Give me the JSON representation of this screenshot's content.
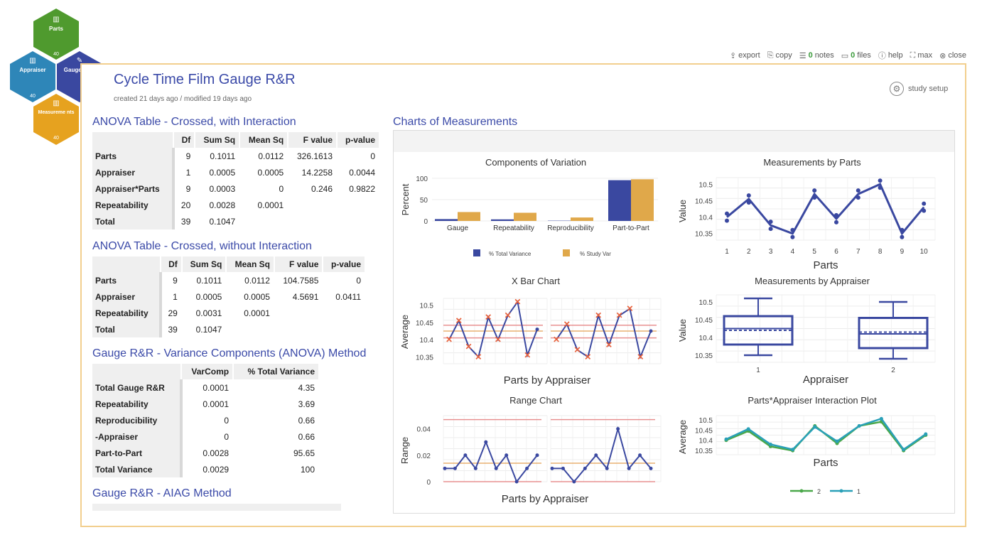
{
  "nav": {
    "parts": {
      "label": "Parts",
      "count": "40",
      "color": "#4f9a2e"
    },
    "appraiser": {
      "label": "Appraiser",
      "count": "40",
      "color": "#2e86b8"
    },
    "gauge": {
      "label": "Gauge R&R",
      "count": "",
      "color": "#3a48a0"
    },
    "measurements": {
      "label": "Measureme nts",
      "count": "40",
      "color": "#e6a21f"
    }
  },
  "toolbar": {
    "export": "export",
    "copy": "copy",
    "notes_count": "0",
    "notes": "notes",
    "files_count": "0",
    "files": "files",
    "help": "help",
    "max": "max",
    "close": "close"
  },
  "study": {
    "title": "Cycle Time Film Gauge R&R",
    "meta": "created 21 days ago / modified 19 days ago",
    "setup": "study setup"
  },
  "anova_interaction": {
    "title": "ANOVA Table - Crossed, with Interaction",
    "headers": [
      "Df",
      "Sum Sq",
      "Mean Sq",
      "F value",
      "p-value"
    ],
    "rows": [
      {
        "name": "Parts",
        "cells": [
          "9",
          "0.1011",
          "0.0112",
          "326.1613",
          "0"
        ]
      },
      {
        "name": "Appraiser",
        "cells": [
          "1",
          "0.0005",
          "0.0005",
          "14.2258",
          "0.0044"
        ]
      },
      {
        "name": "Appraiser*Parts",
        "cells": [
          "9",
          "0.0003",
          "0",
          "0.246",
          "0.9822"
        ]
      },
      {
        "name": "Repeatability",
        "cells": [
          "20",
          "0.0028",
          "0.0001",
          "",
          ""
        ]
      },
      {
        "name": "Total",
        "cells": [
          "39",
          "0.1047",
          "",
          "",
          ""
        ]
      }
    ]
  },
  "anova_no_interaction": {
    "title": "ANOVA Table - Crossed, without Interaction",
    "headers": [
      "Df",
      "Sum Sq",
      "Mean Sq",
      "F value",
      "p-value"
    ],
    "rows": [
      {
        "name": "Parts",
        "cells": [
          "9",
          "0.1011",
          "0.0112",
          "104.7585",
          "0"
        ]
      },
      {
        "name": "Appraiser",
        "cells": [
          "1",
          "0.0005",
          "0.0005",
          "4.5691",
          "0.0411"
        ]
      },
      {
        "name": "Repeatability",
        "cells": [
          "29",
          "0.0031",
          "0.0001",
          "",
          ""
        ]
      },
      {
        "name": "Total",
        "cells": [
          "39",
          "0.1047",
          "",
          "",
          ""
        ]
      }
    ]
  },
  "variance_components": {
    "title": "Gauge R&R - Variance Components (ANOVA) Method",
    "headers": [
      "VarComp",
      "% Total Variance"
    ],
    "rows": [
      {
        "name": "Total Gauge R&R",
        "cells": [
          "0.0001",
          "4.35"
        ]
      },
      {
        "name": "Repeatability",
        "cells": [
          "0.0001",
          "3.69"
        ]
      },
      {
        "name": "Reproducibility",
        "cells": [
          "0",
          "0.66"
        ]
      },
      {
        "name": "-Appraiser",
        "cells": [
          "0",
          "0.66"
        ]
      },
      {
        "name": "Part-to-Part",
        "cells": [
          "0.0028",
          "95.65"
        ]
      },
      {
        "name": "Total Variance",
        "cells": [
          "0.0029",
          "100"
        ]
      }
    ]
  },
  "aiag": {
    "title": "Gauge R&R - AIAG Method"
  },
  "charts_title": "Charts of Measurements",
  "colors": {
    "blue": "#3a48a0",
    "orange": "#e0a84a",
    "red_marker": "#e8603a",
    "limit_red": "#e89090",
    "limit_orange": "#e8b070",
    "teal": "#2aa0b8",
    "green": "#4aa84a"
  },
  "chart_data": [
    {
      "type": "bar",
      "title": "Components of Variation",
      "ylabel": "Percent",
      "ylim": [
        0,
        100
      ],
      "yticks": [
        "0",
        "50",
        "100"
      ],
      "categories": [
        "Gauge",
        "Repeatability",
        "Reproducibility",
        "Part-to-Part"
      ],
      "series": [
        {
          "name": "% Total Variance",
          "values": [
            4.35,
            3.69,
            0.66,
            95.65
          ]
        },
        {
          "name": "% Study Var",
          "values": [
            20.9,
            19.2,
            8.1,
            97.8
          ]
        }
      ]
    },
    {
      "type": "line",
      "title": "Measurements by Parts",
      "xlabel": "Parts",
      "ylabel": "Value",
      "x": [
        1,
        2,
        3,
        4,
        5,
        6,
        7,
        8,
        9,
        10
      ],
      "y": [
        10.4,
        10.455,
        10.375,
        10.35,
        10.47,
        10.395,
        10.47,
        10.5,
        10.35,
        10.43
      ],
      "ylim": [
        10.33,
        10.52
      ],
      "yticks": [
        "10.35",
        "10.4",
        "10.45",
        "10.5"
      ],
      "xticks": [
        "1",
        "2",
        "3",
        "4",
        "5",
        "6",
        "7",
        "8",
        "9",
        "10"
      ]
    },
    {
      "type": "line",
      "title": "X Bar Chart",
      "xlabel": "Parts by Appraiser",
      "ylabel": "Average",
      "series": [
        {
          "name": "1",
          "values": [
            10.4,
            10.455,
            10.38,
            10.35,
            10.465,
            10.4,
            10.47,
            10.51,
            10.355,
            10.43
          ]
        },
        {
          "name": "2",
          "values": [
            10.4,
            10.445,
            10.37,
            10.35,
            10.47,
            10.385,
            10.47,
            10.49,
            10.35,
            10.425
          ]
        }
      ],
      "ylim": [
        10.33,
        10.52
      ],
      "yticks": [
        "10.35",
        "10.4",
        "10.45",
        "10.5"
      ]
    },
    {
      "type": "scatter",
      "title": "Measurements by Appraiser",
      "xlabel": "Appraiser",
      "ylabel": "Value",
      "categories": [
        "1",
        "2"
      ],
      "yticks": [
        "10.35",
        "10.4",
        "10.45",
        "10.5"
      ],
      "boxes": [
        {
          "min": 10.35,
          "q1": 10.38,
          "median": 10.425,
          "mean": 10.42,
          "q3": 10.46,
          "max": 10.51
        },
        {
          "min": 10.34,
          "q1": 10.37,
          "median": 10.41,
          "mean": 10.415,
          "q3": 10.455,
          "max": 10.5
        }
      ]
    },
    {
      "type": "line",
      "title": "Range Chart",
      "xlabel": "Parts by Appraiser",
      "ylabel": "Range",
      "series": [
        {
          "name": "1",
          "values": [
            0.01,
            0.01,
            0.02,
            0.01,
            0.03,
            0.01,
            0.02,
            0.0,
            0.01,
            0.02
          ]
        },
        {
          "name": "2",
          "values": [
            0.01,
            0.01,
            0.0,
            0.01,
            0.02,
            0.01,
            0.04,
            0.01,
            0.02,
            0.01
          ]
        }
      ],
      "ylim": [
        0,
        0.05
      ],
      "yticks": [
        "0",
        "0.02",
        "0.04"
      ]
    },
    {
      "type": "line",
      "title": "Parts*Appraiser Interaction Plot",
      "xlabel": "Parts",
      "ylabel": "Average",
      "series": [
        {
          "name": "2",
          "values": [
            10.4,
            10.445,
            10.37,
            10.35,
            10.47,
            10.385,
            10.47,
            10.49,
            10.35,
            10.425
          ]
        },
        {
          "name": "1",
          "values": [
            10.405,
            10.455,
            10.38,
            10.355,
            10.465,
            10.395,
            10.47,
            10.505,
            10.355,
            10.43
          ]
        }
      ],
      "ylim": [
        10.33,
        10.52
      ],
      "yticks": [
        "10.35",
        "10.4",
        "10.45",
        "10.5"
      ],
      "legend": [
        "2",
        "1"
      ]
    }
  ]
}
